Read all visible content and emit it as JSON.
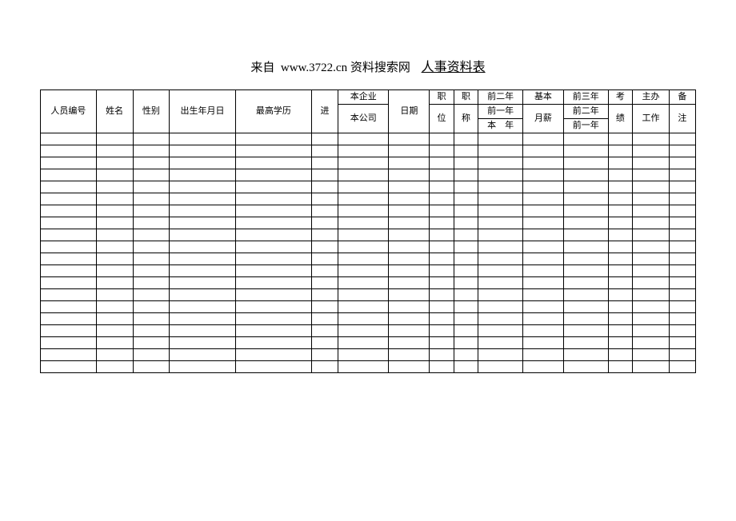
{
  "header": {
    "source_prefix": "来自",
    "source_url": "www.3722.cn",
    "source_suffix": "资料搜索网",
    "title": "人事资料表"
  },
  "table": {
    "columns": {
      "c0": "人员编号",
      "c1": "姓名",
      "c2": "性别",
      "c3": "出生年月日",
      "c4": "最高学历",
      "c5_left": "进",
      "c5_right": "日期",
      "c5_sub1": "本企业",
      "c5_sub2": "本公司",
      "c8_top": "职",
      "c8_bot": "位",
      "c9_top": "职",
      "c9_bot": "称",
      "c10_r1": "前二年",
      "c10_r2": "前一年",
      "c10_r3": "本　年",
      "c11_top": "基本",
      "c11_bot": "月薪",
      "c12_r1": "前三年",
      "c12_r2": "前二年",
      "c12_r3": "前一年",
      "c13_top": "考",
      "c13_bot": "绩",
      "c14_top": "主办",
      "c14_bot": "工作",
      "c15_top": "备",
      "c15_bot": "注"
    },
    "body_row_count": 20,
    "num_columns": 16,
    "border_color": "#000000",
    "background_color": "#ffffff",
    "font_size_header": 11,
    "font_size_body": 11,
    "header_row_height": 17,
    "body_row_height": 14
  }
}
